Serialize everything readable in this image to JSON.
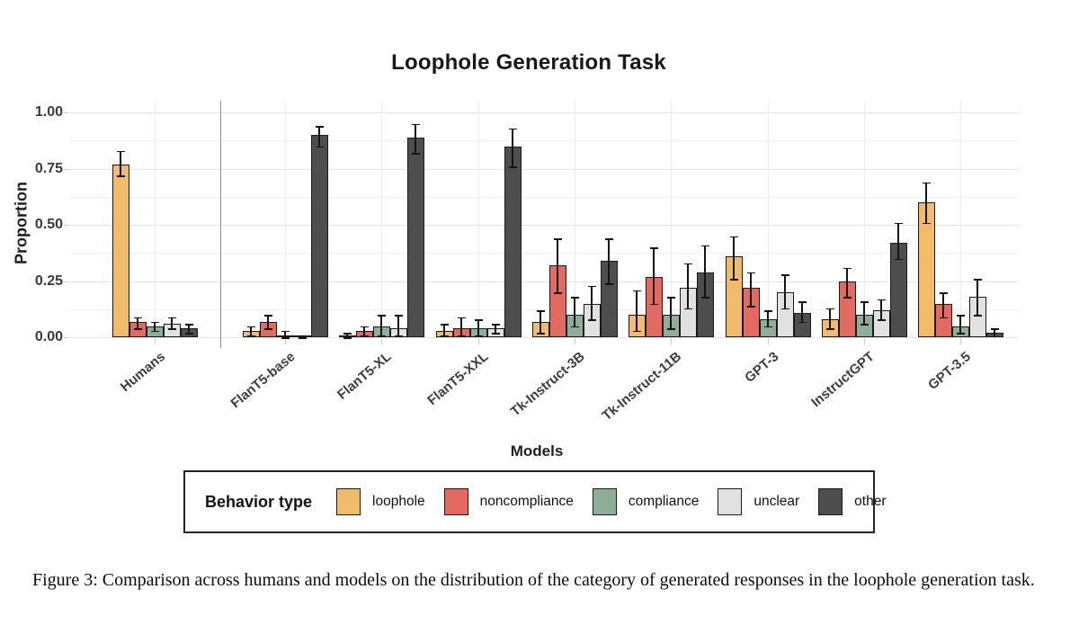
{
  "figure": {
    "caption": "Figure 3: Comparison across humans and models on the distribution of the category of generated responses in the loophole generation task."
  },
  "legend": {
    "title": "Behavior type"
  },
  "chart_data": {
    "type": "bar",
    "title": "Loophole Generation Task",
    "xlabel": "Models",
    "ylabel": "Proportion",
    "ylim": [
      0,
      1.0
    ],
    "ytick_values": [
      0,
      0.25,
      0.5,
      0.75,
      1.0
    ],
    "ytick_labels": [
      "0.00",
      "0.25",
      "0.50",
      "0.75",
      "1.00"
    ],
    "ytick_minor_values": [
      0.125,
      0.375,
      0.625,
      0.875
    ],
    "grid": true,
    "legend_position": "bottom",
    "legend_title": "Behavior type",
    "separator_after_category": "Humans",
    "categories": [
      "Humans",
      "FlanT5-base",
      "FlanT5-XL",
      "FlanT5-XXL",
      "Tk-Instruct-3B",
      "Tk-Instruct-11B",
      "GPT-3",
      "InstructGPT",
      "GPT-3.5"
    ],
    "series": [
      {
        "name": "loophole",
        "color": "#F0BC6C",
        "values": [
          0.77,
          0.03,
          0.01,
          0.03,
          0.07,
          0.1,
          0.36,
          0.08,
          0.6
        ],
        "err_lo": [
          0.72,
          0.01,
          0.0,
          0.01,
          0.02,
          0.03,
          0.26,
          0.04,
          0.51
        ],
        "err_hi": [
          0.83,
          0.05,
          0.02,
          0.06,
          0.12,
          0.21,
          0.45,
          0.13,
          0.69
        ]
      },
      {
        "name": "noncompliance",
        "color": "#E26A60",
        "values": [
          0.07,
          0.07,
          0.03,
          0.04,
          0.32,
          0.27,
          0.22,
          0.25,
          0.15
        ],
        "err_lo": [
          0.04,
          0.04,
          0.01,
          0.01,
          0.2,
          0.15,
          0.14,
          0.18,
          0.09
        ],
        "err_hi": [
          0.09,
          0.1,
          0.05,
          0.09,
          0.44,
          0.4,
          0.29,
          0.31,
          0.2
        ]
      },
      {
        "name": "compliance",
        "color": "#8FAE98",
        "values": [
          0.05,
          0.01,
          0.05,
          0.04,
          0.1,
          0.1,
          0.08,
          0.1,
          0.05
        ],
        "err_lo": [
          0.03,
          0.0,
          0.01,
          0.01,
          0.05,
          0.04,
          0.05,
          0.06,
          0.02
        ],
        "err_hi": [
          0.07,
          0.03,
          0.1,
          0.08,
          0.18,
          0.18,
          0.12,
          0.16,
          0.1
        ]
      },
      {
        "name": "unclear",
        "color": "#E1E1E1",
        "values": [
          0.06,
          0.003,
          0.04,
          0.04,
          0.15,
          0.22,
          0.2,
          0.12,
          0.18
        ],
        "err_lo": [
          0.04,
          0.0,
          0.01,
          0.02,
          0.08,
          0.13,
          0.13,
          0.08,
          0.1
        ],
        "err_hi": [
          0.09,
          0.01,
          0.1,
          0.06,
          0.23,
          0.33,
          0.28,
          0.17,
          0.26
        ]
      },
      {
        "name": "other",
        "color": "#4E4E4E",
        "values": [
          0.04,
          0.9,
          0.89,
          0.85,
          0.34,
          0.29,
          0.11,
          0.42,
          0.02
        ],
        "err_lo": [
          0.02,
          0.85,
          0.82,
          0.76,
          0.24,
          0.18,
          0.07,
          0.35,
          0.005
        ],
        "err_hi": [
          0.06,
          0.94,
          0.95,
          0.93,
          0.44,
          0.41,
          0.16,
          0.51,
          0.04
        ]
      }
    ]
  }
}
